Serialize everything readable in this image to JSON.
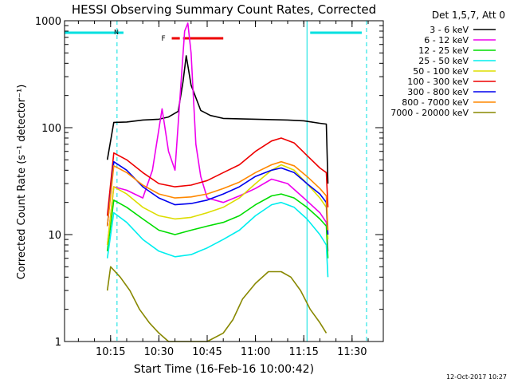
{
  "chart_data": {
    "type": "line",
    "title": "HESSI Observing Summary Count Rates, Corrected",
    "xlabel": "Start Time (16-Feb-16 10:00:42)",
    "ylabel": "Corrected Count Rate (s⁻¹ detector⁻¹)",
    "y_scale": "log",
    "ylim": [
      1,
      1000
    ],
    "xlim": [
      "10:00:42",
      "11:39:42"
    ],
    "x_ticks": [
      "10:15",
      "10:30",
      "10:45",
      "11:00",
      "11:15",
      "11:30"
    ],
    "y_ticks": [
      "1",
      "10",
      "100",
      "1000"
    ],
    "legend_title": "Det 1,5,7, Att 0",
    "legend_position": "outside-right",
    "footer": "12-Oct-2017 10:27",
    "annotations": {
      "night": {
        "label": "N",
        "color": "#00e0e0",
        "bars": [
          [
            "10:00:42",
            "10:19:00"
          ],
          [
            "11:17:00",
            "11:33:00"
          ]
        ],
        "lines": [
          "10:17:00",
          "11:34:30"
        ]
      },
      "flare": {
        "label": "F",
        "color": "#ee0000",
        "bars": [
          [
            "10:34:00",
            "10:36:30"
          ],
          [
            "10:37:30",
            "10:50:00"
          ]
        ]
      },
      "saa_lines": [
        "10:00:42",
        "11:16:00"
      ]
    },
    "series": [
      {
        "name": "3 - 6 keV",
        "color": "#000000",
        "x": [
          "10:14:00",
          "10:16:00",
          "10:20:00",
          "10:25:00",
          "10:30:00",
          "10:33:00",
          "10:36:00",
          "10:37:30",
          "10:38:30",
          "10:40:00",
          "10:43:00",
          "10:46:00",
          "10:50:00",
          "11:00:00",
          "11:10:00",
          "11:15:00",
          "11:20:00",
          "11:22:00",
          "11:22:30"
        ],
        "y": [
          50,
          112,
          113,
          118,
          120,
          126,
          142,
          270,
          470,
          250,
          145,
          130,
          122,
          120,
          118,
          116,
          110,
          108,
          30
        ]
      },
      {
        "name": "6 - 12 keV",
        "color": "#ee00ee",
        "x": [
          "10:14:00",
          "10:16:00",
          "10:20:00",
          "10:25:00",
          "10:28:00",
          "10:31:00",
          "10:33:00",
          "10:35:00",
          "10:37:00",
          "10:38:00",
          "10:39:00",
          "10:40:00",
          "10:41:30",
          "10:43:00",
          "10:45:00",
          "10:50:00",
          "10:55:00",
          "11:00:00",
          "11:05:00",
          "11:10:00",
          "11:15:00",
          "11:20:00",
          "11:22:00",
          "11:22:30"
        ],
        "y": [
          8,
          28,
          26,
          22,
          40,
          150,
          60,
          40,
          300,
          800,
          950,
          500,
          70,
          35,
          22,
          20,
          23,
          27,
          33,
          30,
          22,
          16,
          13,
          7
        ]
      },
      {
        "name": "12 - 25 keV",
        "color": "#00dd00",
        "x": [
          "10:14:00",
          "10:16:00",
          "10:20:00",
          "10:25:00",
          "10:30:00",
          "10:35:00",
          "10:40:00",
          "10:45:00",
          "10:50:00",
          "10:55:00",
          "11:00:00",
          "11:05:00",
          "11:08:00",
          "11:12:00",
          "11:16:00",
          "11:20:00",
          "11:22:00",
          "11:22:30"
        ],
        "y": [
          7,
          21,
          18,
          14,
          11,
          10,
          11,
          12,
          13,
          15,
          19,
          23,
          24,
          22,
          18,
          14,
          12,
          6
        ]
      },
      {
        "name": "25 - 50 keV",
        "color": "#00eeee",
        "x": [
          "10:14:00",
          "10:16:00",
          "10:20:00",
          "10:25:00",
          "10:30:00",
          "10:35:00",
          "10:40:00",
          "10:45:00",
          "10:50:00",
          "10:55:00",
          "11:00:00",
          "11:05:00",
          "11:08:00",
          "11:12:00",
          "11:16:00",
          "11:20:00",
          "11:22:00",
          "11:22:30"
        ],
        "y": [
          6,
          16,
          13,
          9,
          7,
          6.2,
          6.5,
          7.5,
          9,
          11,
          15,
          19,
          20,
          18,
          14,
          10,
          8,
          4
        ]
      },
      {
        "name": "50 - 100 keV",
        "color": "#dddd00",
        "x": [
          "10:14:00",
          "10:16:00",
          "10:20:00",
          "10:25:00",
          "10:30:00",
          "10:35:00",
          "10:40:00",
          "10:45:00",
          "10:50:00",
          "10:55:00",
          "11:00:00",
          "11:05:00",
          "11:08:00",
          "11:12:00",
          "11:16:00",
          "11:20:00",
          "11:22:00",
          "11:22:30"
        ],
        "y": [
          8,
          28,
          24,
          18,
          15,
          14,
          14.5,
          16,
          18,
          22,
          30,
          40,
          45,
          40,
          30,
          22,
          18,
          9
        ]
      },
      {
        "name": "100 - 300 keV",
        "color": "#ee0000",
        "x": [
          "10:14:00",
          "10:16:00",
          "10:20:00",
          "10:25:00",
          "10:30:00",
          "10:35:00",
          "10:40:00",
          "10:45:00",
          "10:50:00",
          "10:55:00",
          "11:00:00",
          "11:05:00",
          "11:08:00",
          "11:12:00",
          "11:16:00",
          "11:20:00",
          "11:22:00",
          "11:22:30"
        ],
        "y": [
          15,
          58,
          50,
          38,
          30,
          28,
          29,
          32,
          38,
          45,
          60,
          75,
          80,
          72,
          55,
          42,
          38,
          18
        ]
      },
      {
        "name": "300 - 800 keV",
        "color": "#0000ee",
        "x": [
          "10:14:00",
          "10:16:00",
          "10:20:00",
          "10:25:00",
          "10:30:00",
          "10:35:00",
          "10:40:00",
          "10:45:00",
          "10:50:00",
          "10:55:00",
          "11:00:00",
          "11:05:00",
          "11:08:00",
          "11:12:00",
          "11:16:00",
          "11:20:00",
          "11:22:00",
          "11:22:30"
        ],
        "y": [
          12,
          48,
          40,
          28,
          22,
          19,
          19.5,
          21,
          24,
          28,
          35,
          40,
          42,
          38,
          30,
          24,
          20,
          10
        ]
      },
      {
        "name": "800 - 7000 keV",
        "color": "#ff8800",
        "x": [
          "10:14:00",
          "10:16:00",
          "10:20:00",
          "10:25:00",
          "10:30:00",
          "10:35:00",
          "10:40:00",
          "10:45:00",
          "10:50:00",
          "10:55:00",
          "11:00:00",
          "11:05:00",
          "11:08:00",
          "11:12:00",
          "11:16:00",
          "11:20:00",
          "11:22:00",
          "11:22:30"
        ],
        "y": [
          12,
          44,
          38,
          29,
          24,
          22,
          22.5,
          24,
          27,
          31,
          38,
          45,
          48,
          44,
          35,
          27,
          23,
          11
        ]
      },
      {
        "name": "7000 - 20000 keV",
        "color": "#888800",
        "x": [
          "10:14:00",
          "10:15:00",
          "10:18:00",
          "10:21:00",
          "10:24:00",
          "10:27:00",
          "10:30:00",
          "10:33:00",
          "10:36:00",
          "10:40:00",
          "10:45:00",
          "10:50:00",
          "10:53:00",
          "10:56:00",
          "11:00:00",
          "11:04:00",
          "11:08:00",
          "11:11:00",
          "11:14:00",
          "11:17:00",
          "11:20:00",
          "11:22:00"
        ],
        "y": [
          3,
          5,
          4,
          3,
          2,
          1.5,
          1.2,
          1,
          1,
          1,
          1,
          1.2,
          1.6,
          2.5,
          3.5,
          4.5,
          4.5,
          4,
          3,
          2,
          1.5,
          1.2
        ]
      }
    ]
  }
}
